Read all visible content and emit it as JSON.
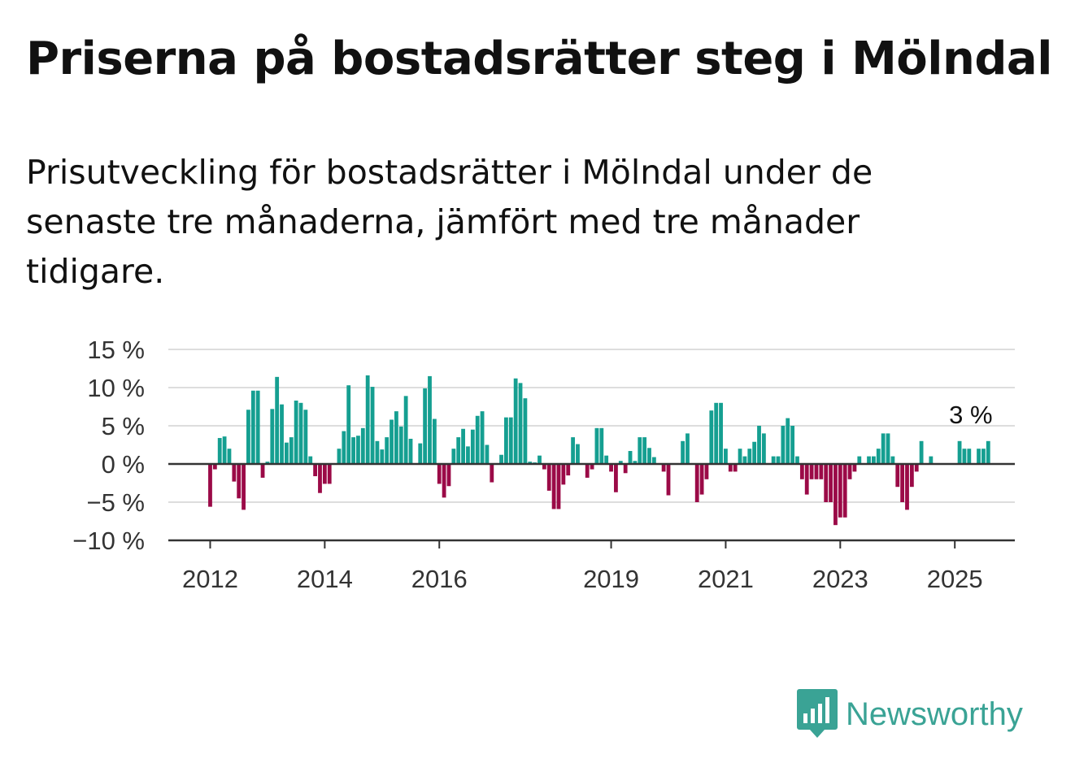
{
  "title": "Priserna på bostadsrätter steg i Mölndal",
  "subtitle": "Prisutveckling för bostadsrätter i Mölndal under de senaste tre månaderna, jämfört med tre månader tidigare.",
  "brand": {
    "name": "Newsworthy",
    "icon": "bar-chart-speech-bubble-icon",
    "color": "#3aa395"
  },
  "colors": {
    "positive": "#159f91",
    "negative": "#9b0a47",
    "grid": "#dddddd",
    "axis": "#333333"
  },
  "chart_data": {
    "type": "bar",
    "title": "",
    "xlabel": "",
    "ylabel": "",
    "ylim": [
      -10,
      15
    ],
    "yticks": [
      15,
      10,
      5,
      0,
      -5,
      -10
    ],
    "ytick_labels": [
      "15 %",
      "10 %",
      "5 %",
      "0 %",
      "−5 %",
      "−10 %"
    ],
    "xticks": [
      {
        "label": "2012",
        "x": "2012-01"
      },
      {
        "label": "2014",
        "x": "2014-01"
      },
      {
        "label": "2016",
        "x": "2016-01"
      },
      {
        "label": "2019",
        "x": "2019-01"
      },
      {
        "label": "2021",
        "x": "2021-01"
      },
      {
        "label": "2023",
        "x": "2023-01"
      },
      {
        "label": "2025",
        "x": "2025-01"
      }
    ],
    "start_month": "2011-09",
    "annotation": {
      "text": "3 %",
      "x": "2025-04"
    },
    "grid": true,
    "legend": "none",
    "values": [
      0,
      0,
      0,
      0,
      -5.6,
      -0.7,
      3.4,
      3.6,
      2.0,
      -2.3,
      -4.5,
      -6.0,
      7.1,
      9.6,
      9.6,
      -1.8,
      0.3,
      7.2,
      11.4,
      7.8,
      2.8,
      3.5,
      8.3,
      8.0,
      7.1,
      1.0,
      -1.6,
      -3.8,
      -2.6,
      -2.6,
      0,
      2.0,
      4.3,
      10.3,
      3.5,
      3.7,
      4.7,
      11.6,
      10.1,
      3.0,
      1.9,
      3.5,
      5.8,
      6.9,
      4.9,
      8.9,
      3.3,
      0,
      2.7,
      9.9,
      11.5,
      5.9,
      -2.6,
      -4.4,
      -2.9,
      2.0,
      3.5,
      4.6,
      2.3,
      4.5,
      6.3,
      6.9,
      2.5,
      -2.4,
      0,
      1.2,
      6.1,
      6.1,
      11.2,
      10.6,
      8.6,
      0.3,
      0.2,
      1.1,
      -0.7,
      -3.5,
      -5.9,
      -5.9,
      -2.7,
      -1.5,
      3.5,
      2.6,
      0,
      -1.8,
      -0.7,
      4.7,
      4.7,
      1.1,
      -1.0,
      -3.7,
      0.4,
      -1.2,
      1.7,
      0.4,
      3.5,
      3.5,
      2.1,
      0.9,
      0,
      -1.0,
      -4.1,
      0,
      0,
      3.0,
      4.0,
      0,
      -5.0,
      -4.0,
      -2.0,
      7.0,
      8.0,
      8.0,
      2.0,
      -1.0,
      -1.0,
      2.0,
      1.0,
      2.0,
      2.9,
      5.0,
      4.0,
      0,
      1.0,
      1.0,
      5.0,
      6.0,
      5.0,
      1.0,
      -2.0,
      -4.0,
      -2.0,
      -2.0,
      -2.0,
      -5.0,
      -5.0,
      -8.0,
      -7.0,
      -7.0,
      -2.0,
      -1.0,
      1.0,
      0,
      1.0,
      1.0,
      2.0,
      4.0,
      4.0,
      1.0,
      -3.0,
      -5.0,
      -6.0,
      -3.0,
      -1.0,
      3.0,
      0,
      1.0,
      0,
      0,
      0,
      0,
      0,
      3.0,
      2.0,
      2.0,
      0,
      2.0,
      2.0,
      3.0
    ]
  }
}
